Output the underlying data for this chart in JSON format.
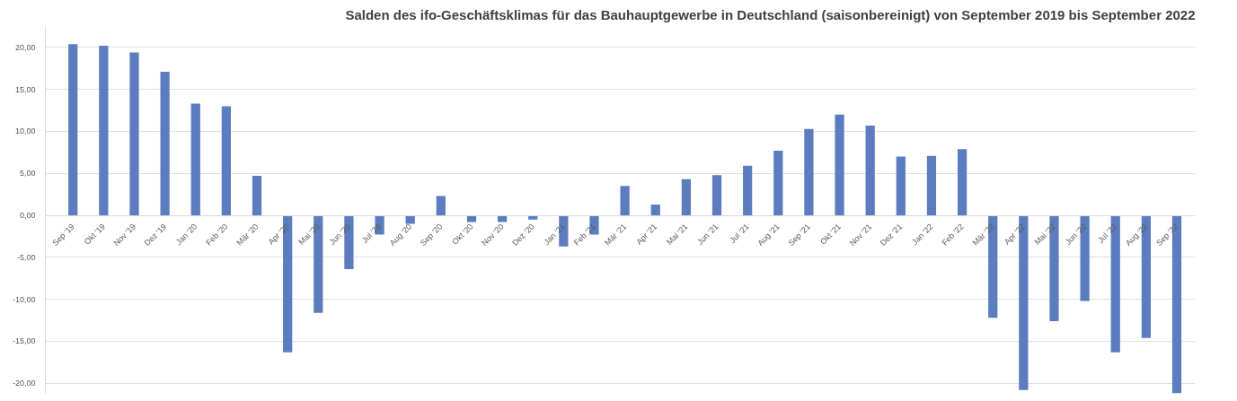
{
  "chart_data": {
    "type": "bar",
    "title": "Salden des ifo-Geschäftsklimas für das Bauhauptgewerbe in Deutschland (saisonbereinigt) von September 2019 bis September 2022",
    "categories": [
      "Sep '19",
      "Okt '19",
      "Nov '19",
      "Dez '19",
      "Jan '20",
      "Feb '20",
      "Mär '20",
      "Apr '20",
      "Mai '20",
      "Jun '20",
      "Jul '20",
      "Aug '20",
      "Sep '20",
      "Okt '20",
      "Nov '20",
      "Dez '20",
      "Jan '21",
      "Feb '21",
      "Mär '21",
      "Apr '21",
      "Mai '21",
      "Jun '21",
      "Jul '21",
      "Aug '21",
      "Sep '21",
      "Okt '21",
      "Nov '21",
      "Dez '21",
      "Jan '22",
      "Feb '22",
      "Mär '22",
      "Apr '22",
      "Mai '22",
      "Jun '22",
      "Jul '22",
      "Aug '22",
      "Sep '22"
    ],
    "values": [
      20.4,
      20.2,
      19.4,
      17.1,
      13.3,
      13.0,
      4.7,
      -16.3,
      -11.6,
      -6.4,
      -2.3,
      -1.0,
      2.3,
      -0.8,
      -0.8,
      -0.5,
      -3.7,
      -2.3,
      3.5,
      1.3,
      4.3,
      4.8,
      5.9,
      7.7,
      10.3,
      12.0,
      10.7,
      7.0,
      7.1,
      7.9,
      -12.2,
      -20.8,
      -12.6,
      -10.2,
      -16.3,
      -14.6,
      -21.2
    ],
    "color": "#5b7dbf",
    "ylim": [
      -21.2,
      22.5
    ],
    "yticks": [
      {
        "value": -20,
        "label": "-20,00"
      },
      {
        "value": -15,
        "label": "-15,00"
      },
      {
        "value": -10,
        "label": "-10,00"
      },
      {
        "value": -5,
        "label": "-5,00"
      },
      {
        "value": 0,
        "label": "0,00"
      },
      {
        "value": 5,
        "label": "5,00"
      },
      {
        "value": 10,
        "label": "10,00"
      },
      {
        "value": 15,
        "label": "15,00"
      },
      {
        "value": 20,
        "label": "20,00"
      }
    ],
    "grid": "y"
  }
}
